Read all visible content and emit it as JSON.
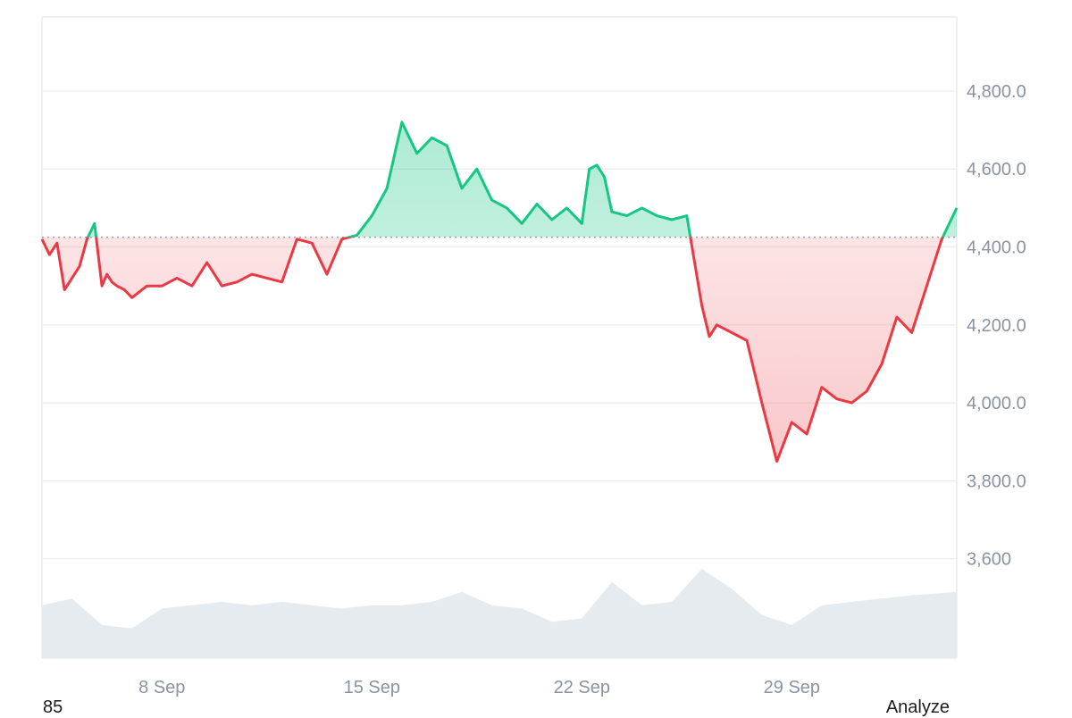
{
  "chart_data": {
    "type": "area",
    "baseline": 4425,
    "ylim": [
      3345,
      4990
    ],
    "xlim": [
      "2025-09-04",
      "2025-10-04T12:00"
    ],
    "grid": true,
    "y_ticks": [
      3600,
      3800,
      4000,
      4200,
      4400,
      4600,
      4800
    ],
    "y_tick_labels": [
      "3,600",
      "3,800.0",
      "4,000.0",
      "4,200.0",
      "4,400.0",
      "4,600.0",
      "4,800.0"
    ],
    "x_ticks": [
      "2025-09-08",
      "2025-09-15",
      "2025-09-22",
      "2025-09-29"
    ],
    "x_tick_labels": [
      "8 Sep",
      "15 Sep",
      "22 Sep",
      "29 Sep"
    ],
    "colors": {
      "up": "#16c784",
      "down": "#ea3943",
      "volume": "#e6ebf0",
      "grid": "#ececec"
    },
    "series": [
      {
        "x": [
          "2025-09-04T00:00",
          "2025-09-04T06:00",
          "2025-09-04T12:00",
          "2025-09-04T18:00",
          "2025-09-05T00:00",
          "2025-09-05T06:00",
          "2025-09-05T12:00",
          "2025-09-05T18:00",
          "2025-09-06T00:00",
          "2025-09-06T04:00",
          "2025-09-06T08:00",
          "2025-09-06T12:00",
          "2025-09-06T18:00",
          "2025-09-07T00:00",
          "2025-09-07T12:00",
          "2025-09-08T00:00",
          "2025-09-08T12:00",
          "2025-09-09T00:00",
          "2025-09-09T12:00",
          "2025-09-10T00:00",
          "2025-09-10T12:00",
          "2025-09-11T00:00",
          "2025-09-11T12:00",
          "2025-09-12T00:00",
          "2025-09-12T12:00",
          "2025-09-13T00:00",
          "2025-09-13T12:00",
          "2025-09-14T00:00",
          "2025-09-14T12:00",
          "2025-09-15T00:00",
          "2025-09-15T12:00",
          "2025-09-16T00:00",
          "2025-09-16T12:00",
          "2025-09-17T00:00",
          "2025-09-17T12:00",
          "2025-09-18T00:00",
          "2025-09-18T12:00",
          "2025-09-19T00:00",
          "2025-09-19T12:00",
          "2025-09-20T00:00",
          "2025-09-20T12:00",
          "2025-09-21T00:00",
          "2025-09-21T12:00",
          "2025-09-22T00:00",
          "2025-09-22T06:00",
          "2025-09-22T12:00",
          "2025-09-22T18:00",
          "2025-09-23T00:00",
          "2025-09-23T12:00",
          "2025-09-24T00:00",
          "2025-09-24T12:00",
          "2025-09-25T00:00",
          "2025-09-25T12:00",
          "2025-09-26T00:00",
          "2025-09-26T06:00",
          "2025-09-26T12:00",
          "2025-09-26T18:00",
          "2025-09-27T00:00",
          "2025-09-27T12:00",
          "2025-09-28T00:00",
          "2025-09-28T12:00",
          "2025-09-29T00:00",
          "2025-09-29T12:00",
          "2025-09-30T00:00",
          "2025-09-30T12:00",
          "2025-10-01T00:00",
          "2025-10-01T12:00",
          "2025-10-02T00:00",
          "2025-10-02T12:00",
          "2025-10-03T00:00",
          "2025-10-03T12:00",
          "2025-10-04T00:00",
          "2025-10-04T12:00"
        ],
        "y": [
          4420,
          4380,
          4410,
          4290,
          4320,
          4350,
          4420,
          4460,
          4300,
          4330,
          4310,
          4300,
          4290,
          4270,
          4300,
          4300,
          4320,
          4300,
          4360,
          4300,
          4310,
          4330,
          4320,
          4310,
          4420,
          4410,
          4330,
          4420,
          4430,
          4480,
          4550,
          4720,
          4640,
          4680,
          4660,
          4550,
          4600,
          4520,
          4500,
          4460,
          4510,
          4470,
          4500,
          4460,
          4600,
          4610,
          4580,
          4490,
          4480,
          4500,
          4480,
          4470,
          4480,
          4250,
          4170,
          4200,
          4190,
          4180,
          4160,
          4000,
          3850,
          3950,
          3920,
          4040,
          4010,
          4000,
          4030,
          4100,
          4220,
          4180,
          4300,
          4420,
          4500
        ]
      }
    ],
    "volume": {
      "x": [
        "2025-09-04",
        "2025-09-05",
        "2025-09-06",
        "2025-09-07",
        "2025-09-08",
        "2025-09-09",
        "2025-09-10",
        "2025-09-11",
        "2025-09-12",
        "2025-09-13",
        "2025-09-14",
        "2025-09-15",
        "2025-09-16",
        "2025-09-17",
        "2025-09-18",
        "2025-09-19",
        "2025-09-20",
        "2025-09-21",
        "2025-09-22",
        "2025-09-23",
        "2025-09-24",
        "2025-09-25",
        "2025-09-26",
        "2025-09-27",
        "2025-09-28",
        "2025-09-29",
        "2025-09-30",
        "2025-10-01",
        "2025-10-02",
        "2025-10-03",
        "2025-10-04T12:00"
      ],
      "values": [
        0.45,
        0.55,
        0.15,
        0.1,
        0.4,
        0.45,
        0.5,
        0.45,
        0.5,
        0.45,
        0.4,
        0.45,
        0.45,
        0.5,
        0.65,
        0.45,
        0.4,
        0.2,
        0.25,
        0.8,
        0.45,
        0.5,
        1.0,
        0.7,
        0.3,
        0.15,
        0.45,
        0.5,
        0.55,
        0.6,
        0.65
      ]
    }
  },
  "footer": {
    "left_label": "85",
    "right_label": "Analyze"
  }
}
